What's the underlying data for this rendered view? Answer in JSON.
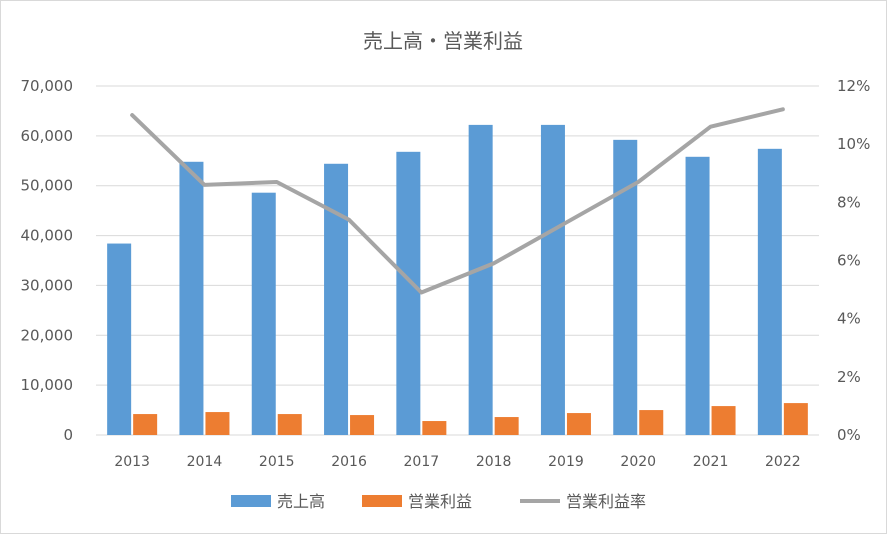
{
  "chart_data": {
    "type": "bar",
    "title": "売上高・営業利益",
    "categories": [
      "2013",
      "2014",
      "2015",
      "2016",
      "2017",
      "2018",
      "2019",
      "2020",
      "2021",
      "2022"
    ],
    "series": [
      {
        "name": "売上高",
        "kind": "bar",
        "axis": "left",
        "color": "#5b9bd5",
        "values": [
          38400,
          54800,
          48600,
          54400,
          56800,
          62200,
          62200,
          59200,
          55800,
          57400
        ]
      },
      {
        "name": "営業利益",
        "kind": "bar",
        "axis": "left",
        "color": "#ed7d31",
        "values": [
          4200,
          4600,
          4200,
          4000,
          2800,
          3600,
          4400,
          5000,
          5800,
          6400
        ]
      },
      {
        "name": "営業利益率",
        "kind": "line",
        "axis": "right",
        "color": "#a5a5a5",
        "values": [
          0.11,
          0.086,
          0.087,
          0.074,
          0.049,
          0.059,
          0.073,
          0.087,
          0.106,
          0.112
        ]
      }
    ],
    "y_left": {
      "ylim": [
        0,
        70000
      ],
      "ticks": [
        "0",
        "10,000",
        "20,000",
        "30,000",
        "40,000",
        "50,000",
        "60,000",
        "70,000"
      ]
    },
    "y_right": {
      "ylim": [
        0,
        0.12
      ],
      "ticks": [
        "0%",
        "2%",
        "4%",
        "6%",
        "8%",
        "10%",
        "12%"
      ]
    },
    "grid": true,
    "legend_position": "bottom"
  }
}
